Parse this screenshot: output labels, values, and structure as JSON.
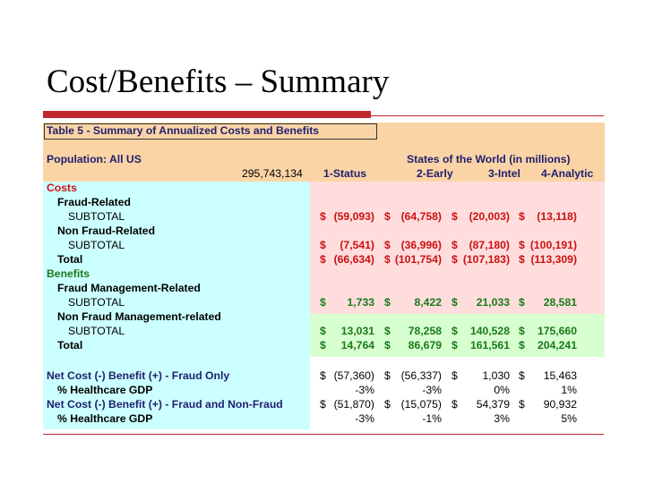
{
  "slide": {
    "title": "Cost/Benefits – Summary"
  },
  "table": {
    "caption": "Table 5 - Summary of Annualized Costs and Benefits",
    "population_label": "Population: All US",
    "population_value": "295,743,134",
    "states_header": "States of the World (in millions)",
    "columns": [
      "1-Status",
      "2-Early",
      "3-Intel",
      "4-Analytic"
    ],
    "labels": {
      "costs": "Costs",
      "fraud_related": "Fraud-Related",
      "subtotal1": "SUBTOTAL",
      "non_fraud_related": "Non Fraud-Related",
      "subtotal2": "SUBTOTAL",
      "total_costs": "Total",
      "benefits": "Benefits",
      "fraud_mgmt": "Fraud Management-Related",
      "subtotal3": "SUBTOTAL",
      "non_fraud_mgmt": "Non Fraud Management-related",
      "subtotal4": "SUBTOTAL",
      "total_benefits": "Total",
      "net_fraud_only": "Net Cost (-) Benefit (+) - Fraud Only",
      "pct_gdp1": "% Healthcare GDP",
      "net_fraud_nonfraud": "Net Cost (-) Benefit (+) - Fraud and Non-Fraud",
      "pct_gdp2": "% Healthcare GDP"
    },
    "rows": {
      "cost_fraud_subtotal": [
        {
          "cur": "$",
          "val": "(59,093)"
        },
        {
          "cur": "$",
          "val": "(64,758)"
        },
        {
          "cur": "$",
          "val": "(20,003)"
        },
        {
          "cur": "$",
          "val": "(13,118)"
        }
      ],
      "cost_nonfraud_subtotal": [
        {
          "cur": "$",
          "val": "(7,541)"
        },
        {
          "cur": "$",
          "val": "(36,996)"
        },
        {
          "cur": "$",
          "val": "(87,180)"
        },
        {
          "cur": "$",
          "val": "(100,191)"
        }
      ],
      "cost_total": [
        {
          "cur": "$",
          "val": "(66,634)"
        },
        {
          "cur": "$",
          "val": "(101,754)"
        },
        {
          "cur": "$",
          "val": "(107,183)"
        },
        {
          "cur": "$",
          "val": "(113,309)"
        }
      ],
      "benefit_fraud_subtotal": [
        {
          "cur": "$",
          "val": "1,733"
        },
        {
          "cur": "$",
          "val": "8,422"
        },
        {
          "cur": "$",
          "val": "21,033"
        },
        {
          "cur": "$",
          "val": "28,581"
        }
      ],
      "benefit_nonfraud_subtotal": [
        {
          "cur": "$",
          "val": "13,031"
        },
        {
          "cur": "$",
          "val": "78,258"
        },
        {
          "cur": "$",
          "val": "140,528"
        },
        {
          "cur": "$",
          "val": "175,660"
        }
      ],
      "benefit_total": [
        {
          "cur": "$",
          "val": "14,764"
        },
        {
          "cur": "$",
          "val": "86,679"
        },
        {
          "cur": "$",
          "val": "161,561"
        },
        {
          "cur": "$",
          "val": "204,241"
        }
      ],
      "net_fraud_only": [
        {
          "cur": "$",
          "val": "(57,360)"
        },
        {
          "cur": "$",
          "val": "(56,337)"
        },
        {
          "cur": "$",
          "val": "1,030"
        },
        {
          "cur": "$",
          "val": "15,463"
        }
      ],
      "pct_gdp1": [
        {
          "cur": "",
          "val": "-3%"
        },
        {
          "cur": "",
          "val": "-3%"
        },
        {
          "cur": "",
          "val": "0%"
        },
        {
          "cur": "",
          "val": "1%"
        }
      ],
      "net_fraud_nonfraud": [
        {
          "cur": "$",
          "val": "(51,870)"
        },
        {
          "cur": "$",
          "val": "(15,075)"
        },
        {
          "cur": "$",
          "val": "54,379"
        },
        {
          "cur": "$",
          "val": "90,932"
        }
      ],
      "pct_gdp2": [
        {
          "cur": "",
          "val": "-3%"
        },
        {
          "cur": "",
          "val": "-1%"
        },
        {
          "cur": "",
          "val": "3%"
        },
        {
          "cur": "",
          "val": "5%"
        }
      ]
    },
    "colors": {
      "header_bg": "#fbd4a6",
      "label_bg": "#ccffff",
      "cost_bg": "#ffdddd",
      "benefit_bg": "#d8ffd0",
      "costs_text": "#cc1111",
      "benefits_text": "#1a7a1a",
      "label_text": "#1f1f6e",
      "accent_rule": "#c0272d"
    }
  }
}
